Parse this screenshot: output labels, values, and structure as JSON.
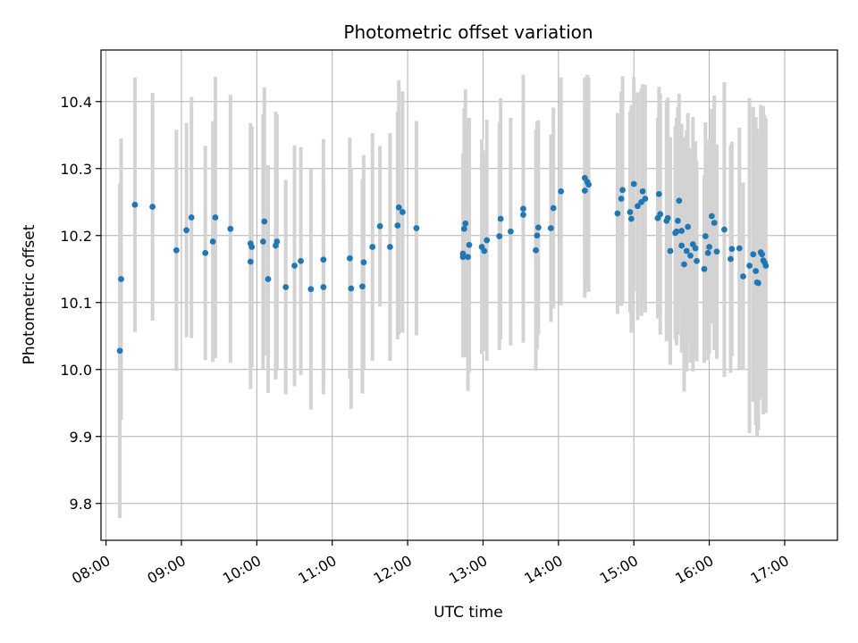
{
  "chart_data": {
    "type": "scatter",
    "title": "Photometric offset variation",
    "xlabel": "UTC time",
    "ylabel": "Photometric offset",
    "x_ticks": [
      "08:00",
      "09:00",
      "10:00",
      "11:00",
      "12:00",
      "13:00",
      "14:00",
      "15:00",
      "16:00",
      "17:00"
    ],
    "y_ticks": [
      "9.8",
      "9.9",
      "10.0",
      "10.1",
      "10.2",
      "10.3",
      "10.4"
    ],
    "xlim": [
      "07:56",
      "17:42"
    ],
    "ylim": [
      9.745,
      10.477
    ],
    "grid": true,
    "colors": {
      "point": "#1f77b4",
      "errorbar": "#d3d3d3",
      "grid": "#b0b0b0"
    },
    "series": [
      {
        "x": [
          "08:11",
          "08:12",
          "08:23",
          "08:37",
          "08:56",
          "09:04",
          "09:08",
          "09:19",
          "09:25",
          "09:27",
          "09:39",
          "09:55",
          "09:55",
          "09:56",
          "10:05",
          "10:06",
          "10:09",
          "10:15",
          "10:16",
          "10:23",
          "10:30",
          "10:35",
          "10:43",
          "10:53",
          "10:53",
          "11:14",
          "11:15",
          "11:24",
          "11:25",
          "11:32",
          "11:38",
          "11:46",
          "11:52",
          "11:53",
          "11:56",
          "12:07",
          "12:44",
          "12:44",
          "12:45",
          "12:46",
          "12:48",
          "12:49",
          "12:59",
          "13:01",
          "13:03",
          "13:13",
          "13:14",
          "13:22",
          "13:32",
          "13:32",
          "13:42",
          "13:43",
          "13:44",
          "13:54",
          "13:56",
          "14:02",
          "14:21",
          "14:21",
          "14:23",
          "14:24",
          "14:47",
          "14:50",
          "14:51",
          "14:57",
          "14:58",
          "15:00",
          "15:03",
          "15:06",
          "15:07",
          "15:09",
          "15:19",
          "15:20",
          "15:21",
          "15:26",
          "15:27",
          "15:29",
          "15:33",
          "15:34",
          "15:35",
          "15:36",
          "15:38",
          "15:38",
          "15:40",
          "15:42",
          "15:43",
          "15:45",
          "15:47",
          "15:49",
          "15:50",
          "15:56",
          "15:57",
          "15:59",
          "16:00",
          "16:02",
          "16:04",
          "16:06",
          "16:12",
          "16:17",
          "16:18",
          "16:24",
          "16:27",
          "16:32",
          "16:35",
          "16:37",
          "16:38",
          "16:39",
          "16:41",
          "16:42",
          "16:43",
          "16:44",
          "16:45"
        ],
        "y": [
          10.028,
          10.135,
          10.246,
          10.243,
          10.178,
          10.208,
          10.227,
          10.174,
          10.191,
          10.227,
          10.21,
          10.161,
          10.188,
          10.183,
          10.191,
          10.221,
          10.135,
          10.185,
          10.191,
          10.123,
          10.155,
          10.162,
          10.12,
          10.123,
          10.164,
          10.166,
          10.121,
          10.124,
          10.16,
          10.183,
          10.214,
          10.183,
          10.215,
          10.242,
          10.235,
          10.211,
          10.173,
          10.168,
          10.21,
          10.218,
          10.168,
          10.186,
          10.183,
          10.177,
          10.193,
          10.199,
          10.225,
          10.206,
          10.24,
          10.231,
          10.178,
          10.2,
          10.212,
          10.211,
          10.241,
          10.266,
          10.286,
          10.267,
          10.28,
          10.276,
          10.233,
          10.255,
          10.268,
          10.235,
          10.225,
          10.277,
          10.244,
          10.25,
          10.266,
          10.255,
          10.226,
          10.262,
          10.232,
          10.222,
          10.226,
          10.177,
          10.204,
          10.206,
          10.222,
          10.252,
          10.207,
          10.185,
          10.157,
          10.177,
          10.213,
          10.17,
          10.187,
          10.181,
          10.162,
          10.15,
          10.199,
          10.174,
          10.183,
          10.229,
          10.219,
          10.176,
          10.209,
          10.165,
          10.18,
          10.181,
          10.139,
          10.155,
          10.172,
          10.147,
          10.13,
          10.129,
          10.175,
          10.172,
          10.163,
          10.16,
          10.155
        ],
        "err": [
          0.25,
          0.21,
          0.19,
          0.17,
          0.18,
          0.16,
          0.18,
          0.16,
          0.18,
          0.21,
          0.2,
          0.19,
          0.18,
          0.18,
          0.19,
          0.2,
          0.17,
          0.2,
          0.19,
          0.16,
          0.18,
          0.17,
          0.18,
          0.16,
          0.18,
          0.18,
          0.18,
          0.16,
          0.16,
          0.17,
          0.12,
          0.17,
          0.17,
          0.19,
          0.18,
          0.16,
          0.15,
          0.15,
          0.18,
          0.2,
          0.2,
          0.19,
          0.16,
          0.15,
          0.18,
          0.17,
          0.18,
          0.17,
          0.2,
          0.17,
          0.18,
          0.17,
          0.16,
          0.14,
          0.15,
          0.17,
          0.15,
          0.16,
          0.16,
          0.16,
          0.15,
          0.16,
          0.17,
          0.15,
          0.17,
          0.16,
          0.17,
          0.17,
          0.16,
          0.17,
          0.15,
          0.16,
          0.18,
          0.18,
          0.18,
          0.17,
          0.16,
          0.17,
          0.17,
          0.16,
          0.16,
          0.16,
          0.19,
          0.18,
          0.17,
          0.16,
          0.19,
          0.16,
          0.15,
          0.14,
          0.17,
          0.16,
          0.16,
          0.16,
          0.19,
          0.16,
          0.22,
          0.17,
          0.16,
          0.18,
          0.14,
          0.25,
          0.22,
          0.23,
          0.23,
          0.22,
          0.22,
          0.21,
          0.23,
          0.22,
          0.22
        ]
      }
    ]
  }
}
